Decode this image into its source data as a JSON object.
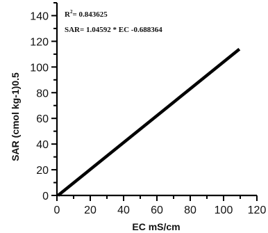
{
  "chart_data": {
    "type": "line",
    "title": "",
    "xlabel": "EC mS/cm",
    "ylabel": "SAR (cmol kg-1)0.5",
    "xlim": [
      0,
      120
    ],
    "ylim": [
      0,
      150
    ],
    "x_ticks": [
      "0",
      "20",
      "40",
      "60",
      "80",
      "100",
      "120"
    ],
    "y_ticks": [
      "0",
      "20",
      "40",
      "60",
      "80",
      "100",
      "120",
      "140"
    ],
    "grid": false,
    "series": [
      {
        "x": [
          0.66,
          109.5
        ],
        "y": [
          0,
          113.9
        ],
        "color": "#000000"
      }
    ],
    "annotations": {
      "r2_label": "R",
      "r2_sup": "2",
      "r2_value": "= 0.843625",
      "equation": "SAR= 1.04592 * EC -0.688364"
    }
  }
}
